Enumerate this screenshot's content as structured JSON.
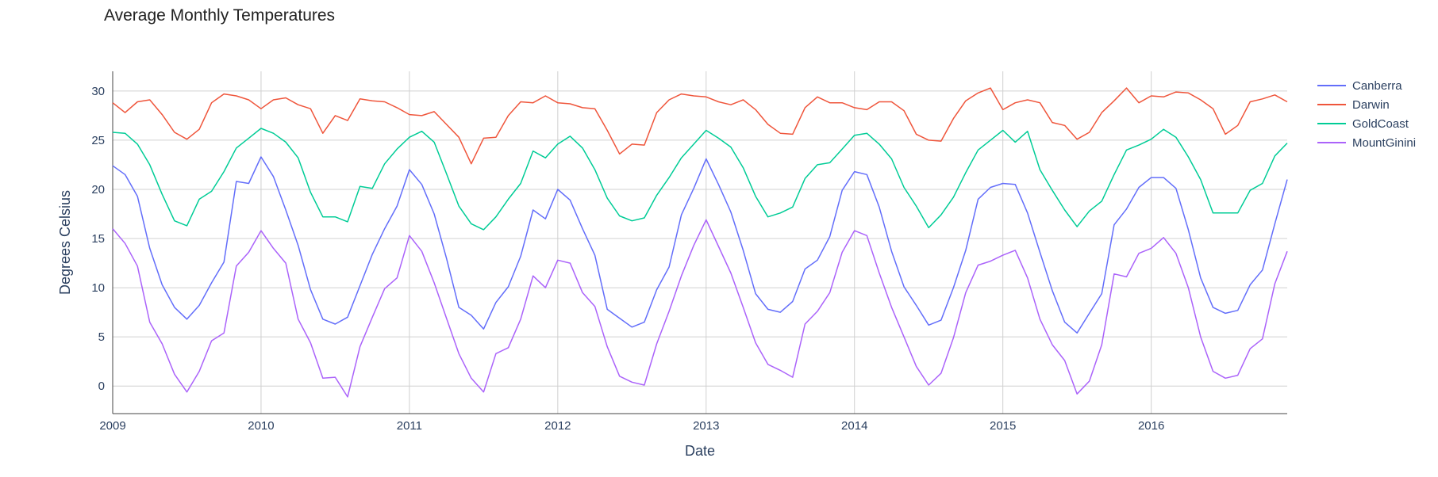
{
  "chart_data": {
    "type": "line",
    "title": "Average Monthly Temperatures",
    "xlabel": "Date",
    "ylabel": "Degrees Celsius",
    "x_range": [
      "2009-01",
      "2016-12"
    ],
    "ylim": [
      -2.8,
      32
    ],
    "x_ticks": [
      "2009",
      "2010",
      "2011",
      "2012",
      "2013",
      "2014",
      "2015",
      "2016"
    ],
    "y_ticks": [
      0,
      5,
      10,
      15,
      20,
      25,
      30
    ],
    "grid": true,
    "legend_position": "top-right",
    "x_start": "2009-01",
    "series": [
      {
        "name": "Canberra",
        "color": "#636efa",
        "values": [
          22.4,
          21.5,
          19.3,
          14.0,
          10.3,
          8.0,
          6.8,
          8.2,
          10.5,
          12.6,
          20.8,
          20.6,
          23.3,
          21.3,
          17.9,
          14.3,
          9.8,
          6.8,
          6.3,
          7.0,
          10.2,
          13.4,
          16.0,
          18.3,
          22.0,
          20.5,
          17.5,
          13.0,
          8.0,
          7.2,
          5.8,
          8.5,
          10.1,
          13.2,
          17.9,
          17.0,
          20.0,
          18.9,
          16.0,
          13.3,
          7.8,
          6.9,
          6.0,
          6.5,
          9.8,
          12.1,
          17.4,
          20.1,
          23.1,
          20.5,
          17.7,
          13.8,
          9.4,
          7.8,
          7.5,
          8.6,
          11.9,
          12.8,
          15.2,
          19.9,
          21.8,
          21.5,
          18.2,
          13.7,
          10.1,
          8.2,
          6.2,
          6.7,
          10.0,
          13.8,
          19.0,
          20.2,
          20.6,
          20.5,
          17.6,
          13.6,
          9.7,
          6.5,
          5.4,
          7.4,
          9.4,
          16.4,
          18.0,
          20.2,
          21.2,
          21.2,
          20.1,
          15.9,
          11.0,
          8.0,
          7.4,
          7.7,
          10.3,
          11.8,
          16.5,
          21.0
        ]
      },
      {
        "name": "Darwin",
        "color": "#ef553b",
        "values": [
          28.8,
          27.8,
          28.9,
          29.1,
          27.6,
          25.8,
          25.1,
          26.1,
          28.8,
          29.7,
          29.5,
          29.1,
          28.2,
          29.1,
          29.3,
          28.6,
          28.2,
          25.7,
          27.5,
          27.0,
          29.2,
          29.0,
          28.9,
          28.3,
          27.6,
          27.5,
          27.9,
          26.6,
          25.3,
          22.6,
          25.2,
          25.3,
          27.5,
          28.9,
          28.8,
          29.5,
          28.8,
          28.7,
          28.3,
          28.2,
          26.0,
          23.6,
          24.6,
          24.5,
          27.8,
          29.1,
          29.7,
          29.5,
          29.4,
          28.9,
          28.6,
          29.1,
          28.1,
          26.6,
          25.7,
          25.6,
          28.3,
          29.4,
          28.8,
          28.8,
          28.3,
          28.1,
          28.9,
          28.9,
          28.0,
          25.6,
          25.0,
          24.9,
          27.2,
          29.0,
          29.8,
          30.3,
          28.1,
          28.8,
          29.1,
          28.8,
          26.8,
          26.5,
          25.1,
          25.8,
          27.8,
          29.0,
          30.3,
          28.8,
          29.5,
          29.4,
          29.9,
          29.8,
          29.1,
          28.2,
          25.6,
          26.5,
          28.9,
          29.2,
          29.6,
          28.9
        ]
      },
      {
        "name": "GoldCoast",
        "color": "#00cc96",
        "values": [
          25.8,
          25.7,
          24.6,
          22.5,
          19.5,
          16.8,
          16.3,
          19.0,
          19.8,
          21.8,
          24.2,
          25.2,
          26.2,
          25.7,
          24.8,
          23.2,
          19.7,
          17.2,
          17.2,
          16.7,
          20.3,
          20.1,
          22.6,
          24.1,
          25.3,
          25.9,
          24.8,
          21.6,
          18.3,
          16.5,
          15.9,
          17.2,
          19.0,
          20.6,
          23.9,
          23.2,
          24.6,
          25.4,
          24.2,
          22.0,
          19.1,
          17.3,
          16.8,
          17.1,
          19.4,
          21.2,
          23.2,
          24.6,
          26.0,
          25.2,
          24.3,
          22.2,
          19.3,
          17.2,
          17.6,
          18.2,
          21.1,
          22.5,
          22.7,
          24.1,
          25.5,
          25.7,
          24.6,
          23.1,
          20.2,
          18.3,
          16.1,
          17.4,
          19.2,
          21.7,
          24.0,
          25.0,
          26.0,
          24.8,
          25.9,
          22.0,
          19.9,
          17.9,
          16.2,
          17.8,
          18.8,
          21.5,
          24.0,
          24.5,
          25.1,
          26.1,
          25.3,
          23.3,
          21.0,
          17.6,
          17.6,
          17.6,
          19.9,
          20.6,
          23.4,
          24.7
        ]
      },
      {
        "name": "MountGinini",
        "color": "#ab63fa",
        "values": [
          16.0,
          14.5,
          12.2,
          6.5,
          4.3,
          1.2,
          -0.6,
          1.5,
          4.6,
          5.4,
          12.2,
          13.6,
          15.8,
          14.0,
          12.5,
          6.8,
          4.4,
          0.8,
          0.9,
          -1.1,
          4.0,
          7.0,
          9.9,
          11.0,
          15.3,
          13.7,
          10.5,
          6.9,
          3.3,
          0.8,
          -0.6,
          3.3,
          3.9,
          6.8,
          11.2,
          10.0,
          12.8,
          12.5,
          9.5,
          8.1,
          4.0,
          1.0,
          0.4,
          0.1,
          4.3,
          7.6,
          11.2,
          14.3,
          16.9,
          14.2,
          11.5,
          8.0,
          4.4,
          2.2,
          1.6,
          0.9,
          6.3,
          7.6,
          9.5,
          13.6,
          15.8,
          15.3,
          11.5,
          8.0,
          5.0,
          2.0,
          0.1,
          1.3,
          4.9,
          9.5,
          12.3,
          12.7,
          13.3,
          13.8,
          11.0,
          6.8,
          4.2,
          2.6,
          -0.8,
          0.5,
          4.2,
          11.4,
          11.1,
          13.5,
          14.0,
          15.1,
          13.5,
          10.0,
          5.0,
          1.5,
          0.8,
          1.1,
          3.8,
          4.8,
          10.4,
          13.7
        ]
      }
    ]
  }
}
